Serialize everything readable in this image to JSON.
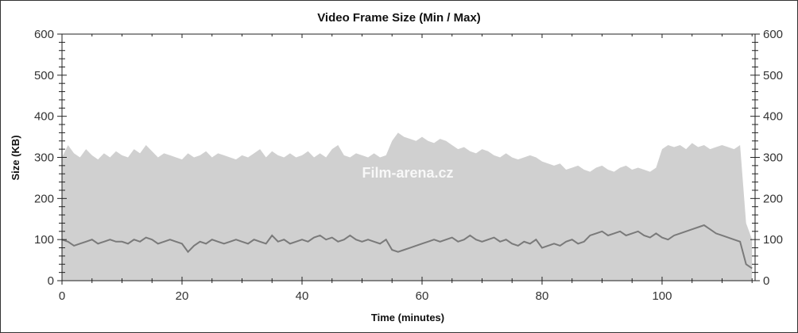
{
  "chart_data": {
    "type": "area",
    "title": "Video Frame Size (Min / Max)",
    "xlabel": "Time (minutes)",
    "ylabel": "Size (KB)",
    "xlim": [
      0,
      115.5
    ],
    "ylim": [
      0,
      600
    ],
    "xticks": [
      0,
      20,
      40,
      60,
      80,
      100
    ],
    "yticks": [
      0,
      100,
      200,
      300,
      400,
      500,
      600
    ],
    "grid": false,
    "secondary_y_axis": true,
    "watermark": "Film-arena.cz",
    "colors": {
      "max": "#d0d0d0",
      "min": "#7a7a7a"
    },
    "x_step_minutes": 1,
    "series": [
      {
        "key": "max",
        "values": [
          300,
          330,
          310,
          300,
          320,
          305,
          295,
          310,
          300,
          315,
          305,
          300,
          320,
          310,
          330,
          315,
          300,
          310,
          305,
          300,
          295,
          310,
          300,
          305,
          315,
          300,
          310,
          305,
          300,
          295,
          305,
          300,
          310,
          320,
          300,
          315,
          305,
          300,
          310,
          300,
          305,
          315,
          300,
          310,
          300,
          320,
          330,
          305,
          300,
          310,
          305,
          300,
          310,
          300,
          305,
          340,
          360,
          350,
          345,
          340,
          350,
          340,
          335,
          345,
          340,
          330,
          320,
          325,
          315,
          310,
          320,
          315,
          305,
          300,
          310,
          300,
          295,
          300,
          305,
          300,
          290,
          285,
          280,
          285,
          270,
          275,
          280,
          270,
          265,
          275,
          280,
          270,
          265,
          275,
          280,
          270,
          275,
          270,
          265,
          275,
          320,
          330,
          325,
          330,
          320,
          335,
          325,
          330,
          320,
          325,
          330,
          325,
          320,
          330,
          140,
          100
        ]
      },
      {
        "key": "min",
        "values": [
          100,
          95,
          85,
          90,
          95,
          100,
          90,
          95,
          100,
          95,
          95,
          90,
          100,
          95,
          105,
          100,
          90,
          95,
          100,
          95,
          90,
          70,
          85,
          95,
          90,
          100,
          95,
          90,
          95,
          100,
          95,
          90,
          100,
          95,
          90,
          110,
          95,
          100,
          90,
          95,
          100,
          95,
          105,
          110,
          100,
          105,
          95,
          100,
          110,
          100,
          95,
          100,
          95,
          90,
          100,
          75,
          70,
          75,
          80,
          85,
          90,
          95,
          100,
          95,
          100,
          105,
          95,
          100,
          110,
          100,
          95,
          100,
          105,
          95,
          100,
          90,
          85,
          95,
          90,
          100,
          80,
          85,
          90,
          85,
          95,
          100,
          90,
          95,
          110,
          115,
          120,
          110,
          115,
          120,
          110,
          115,
          120,
          110,
          105,
          115,
          105,
          100,
          110,
          115,
          120,
          125,
          130,
          135,
          125,
          115,
          110,
          105,
          100,
          95,
          40,
          30
        ]
      }
    ]
  }
}
